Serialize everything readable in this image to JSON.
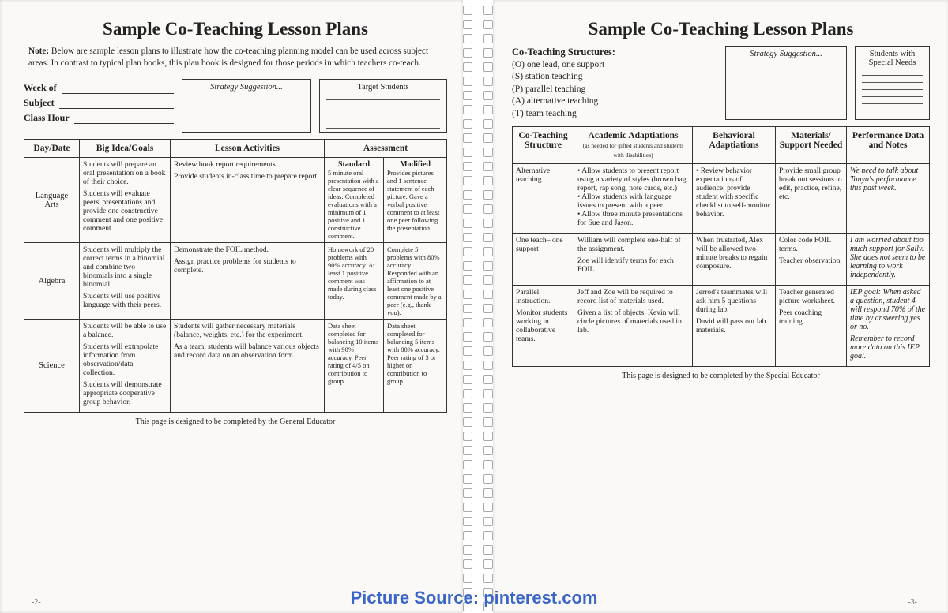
{
  "left": {
    "title": "Sample Co-Teaching Lesson Plans",
    "note_prefix": "Note:",
    "note_body": "Below are sample lesson plans to illustrate how the co-teaching planning model can be used across subject areas. In contrast to typical plan books, this plan book is designed for those periods in which teachers co-teach.",
    "fields": {
      "week": "Week of",
      "subject": "Subject",
      "classhour": "Class Hour"
    },
    "strategy_label": "Strategy Suggestion...",
    "target_label": "Target Students",
    "table": {
      "headers": [
        "Day/Date",
        "Big Idea/Goals",
        "Lesson Activities",
        "Assessment"
      ],
      "assess_sub": [
        "Standard",
        "Modified"
      ],
      "rows": [
        {
          "subject": "Language Arts",
          "goals": "Students will prepare an oral presentation on a book of their choice.\n\nStudents will evaluate peers' presentations and provide one constructive comment and one positive comment.",
          "activities": "Review book report requirements.\n\nProvide students in-class time to prepare report.",
          "standard": "5 minute oral presentation with a clear sequence of ideas. Completed evaluations with a minimum of 1 positive and 1 constructive comment.",
          "modified": "Provides pictures and 1 sentence statement of each picture. Gave a verbal positive comment to at least one peer following the presentation."
        },
        {
          "subject": "Algebra",
          "goals": "Students will multiply the correct terms in a binomial and combine two binomials into a single binomial.\n\nStudents will use positive language with their peers.",
          "activities": "Demonstrate the FOIL method.\n\nAssign practice problems for students to complete.",
          "standard": "Homework of 20 problems with 90% accuracy. At least 1 positive comment was made during class today.",
          "modified": "Complete 5 problems with 80% accuracy. Responded with an affirmation to at least one positive comment made by a peer (e.g., thank you)."
        },
        {
          "subject": "Science",
          "goals": "Students will be able to use a balance.\n\nStudents will extrapolate information from observation/data collection.\n\nStudents will demonstrate appropriate cooperative group behavior.",
          "activities": "Students will gather necessary materials (balance, weights, etc.) for the experiment.\n\nAs a team, students will balance various objects and record data on an observation form.",
          "standard": "Data sheet completed for balancing 10 items with 90% accuracy. Peer rating of 4/5 on contribution to group.",
          "modified": "Data sheet completed for balancing 5 items with 80% accuracy. Peer rating of 3 or higher on contribution to group."
        }
      ]
    },
    "footer": "This page is designed to be completed by the General Educator",
    "pagenum": "-2-"
  },
  "right": {
    "title": "Sample Co-Teaching Lesson Plans",
    "structures_heading": "Co-Teaching Structures:",
    "structures": [
      "(O) one lead, one support",
      "(S)  station teaching",
      "(P)  parallel teaching",
      "(A) alternative teaching",
      "(T)  team teaching"
    ],
    "strategy_label": "Strategy Suggestion...",
    "special_label": "Students with Special Needs",
    "table": {
      "headers": [
        "Co-Teaching Structure",
        "Academic Adaptiations",
        "Behavioral Adaptiations",
        "Materials/ Support Needed",
        "Performance Data and Notes"
      ],
      "acad_sub": "(as needed for gifted students and students with disabilities)",
      "rows": [
        {
          "struct": "Alternative teaching",
          "acad": "• Allow students to present report using a variety of styles (brown bag report, rap song, note cards, etc.)\n• Allow students with language issues to present with a peer.\n• Allow three minute presentations for Sue and Jason.",
          "behav": "• Review behavior expectations of audience; provide student with specific checklist to self-monitor behavior.",
          "mat": "Provide small group break out sessions to edit, practice, refine, etc.",
          "notes": "We need to talk about Tanya's performance this past week."
        },
        {
          "struct": "One teach– one support",
          "acad": "William will complete one-half of the assignment.\n\nZoe will identify terms for each FOIL.",
          "behav": "When frustrated, Alex will be allowed two-minute breaks to regain composure.",
          "mat": "Color code FOIL terms.\n\nTeacher observation.",
          "notes": "I am worried about too much support for Sally. She does not seem to be learning to work independently."
        },
        {
          "struct": "Parallel instruction.\n\nMonitor students working in collaborative teams.",
          "acad": "Jeff and Zoe will be required to record list of materials used.\n\nGiven a list of objects, Kevin will circle pictures of materials used in lab.",
          "behav": "Jerrod's teammates will ask him 5 questions during lab.\n\nDavid will pass out lab materials.",
          "mat": "Teacher generated picture worksheet.\n\nPeer coaching training.",
          "notes": "IEP goal: When asked a question, student 4 will respond 70% of the time by answering yes or no.\n\nRemember to record more data on this IEP goal."
        }
      ]
    },
    "footer": "This page is designed to be completed by the Special Educator",
    "pagenum": "-3-"
  },
  "watermark": "Picture Source: pinterest.com"
}
